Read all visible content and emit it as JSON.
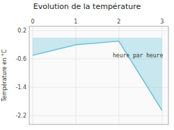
{
  "chart_data": {
    "type": "area",
    "title": "Evolution de la température",
    "ylabel": "Température en °C",
    "xlabel": "heure par heure",
    "x": [
      0,
      1,
      2,
      3
    ],
    "values": [
      -0.5,
      -0.2,
      -0.1,
      -2.05
    ],
    "color": "#6bc4d8",
    "xlim": [
      -0.08,
      3.15
    ],
    "ylim": [
      -2.45,
      0.32
    ],
    "xticks": [
      0,
      1,
      2,
      3
    ],
    "yticks": [
      0.2,
      -0.6,
      -1.4,
      -2.2
    ],
    "grid": true
  }
}
